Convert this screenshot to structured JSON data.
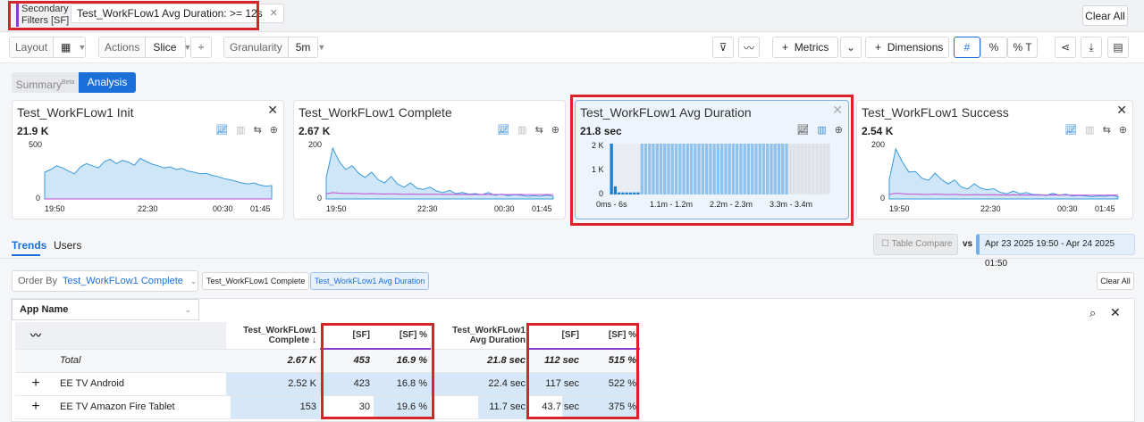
{
  "filters": {
    "label": "Secondary Filters [SF]",
    "chip": "Test_WorkFLow1 Avg Duration: >= 12s",
    "clear_all": "Clear All"
  },
  "toolbar": {
    "layout_label": "Layout",
    "actions_label": "Actions",
    "actions_value": "Slice",
    "granularity_label": "Granularity",
    "granularity_value": "5m",
    "metrics": "Metrics",
    "dimensions": "Dimensions",
    "hash": "#",
    "pct": "%",
    "pct_t": "% T"
  },
  "view_tabs": {
    "summary": "Summary",
    "beta": "Beta",
    "analysis": "Analysis"
  },
  "cards": [
    {
      "title": "Test_WorkFLow1 Init",
      "value": "21.9 K",
      "ymax": "500",
      "ymin": "0",
      "x": [
        "19:50",
        "22:30",
        "00:30",
        "01:45"
      ]
    },
    {
      "title": "Test_WorkFLow1 Complete",
      "value": "2.67 K",
      "ymax": "200",
      "ymin": "0",
      "x": [
        "19:50",
        "22:30",
        "00:30",
        "01:45"
      ]
    },
    {
      "title": "Test_WorkFLow1 Avg Duration",
      "value": "21.8 sec",
      "ymax": "2 K",
      "ymid": "1 K",
      "ymin": "0",
      "x": [
        "0ms - 6s",
        "1.1m - 1.2m",
        "2.2m - 2.3m",
        "3.3m - 3.4m"
      ]
    },
    {
      "title": "Test_WorkFLow1 Success",
      "value": "2.54 K",
      "ymax": "200",
      "ymin": "0",
      "x": [
        "19:50",
        "22:30",
        "00:30",
        "01:45"
      ]
    }
  ],
  "trends": {
    "tab_trends": "Trends",
    "tab_users": "Users",
    "table_compare": "Table Compare",
    "vs": "vs",
    "date_range": "Apr 23 2025 19:50 - Apr 24 2025 01:50"
  },
  "orderby": {
    "label": "Order By",
    "value": "Test_WorkFLow1 Complete",
    "chip1": "Test_WorkFLow1 Complete",
    "chip2": "Test_WorkFLow1 Avg Duration",
    "clear_all": "Clear All"
  },
  "table": {
    "dim_header": "App Name",
    "col1": "Test_WorkFLow1 Complete",
    "sort_arrow": "↓",
    "sf": "[SF]",
    "sf_pct": "[SF] %",
    "col2": "Test_WorkFLow1 Avg Duration",
    "rows": [
      {
        "name": "Total",
        "c": "2.67 K",
        "csf": "453",
        "cpct": "16.9 %",
        "d": "21.8 sec",
        "dsf": "112 sec",
        "dpct": "515 %"
      },
      {
        "name": "EE TV Android",
        "c": "2.52 K",
        "csf": "423",
        "cpct": "16.8 %",
        "d": "22.4 sec",
        "dsf": "117 sec",
        "dpct": "522 %"
      },
      {
        "name": "EE TV Amazon Fire Tablet",
        "c": "153",
        "csf": "30",
        "cpct": "19.6 %",
        "d": "11.7 sec",
        "dsf": "43.7 sec",
        "dpct": "375 %"
      }
    ]
  },
  "colors": {
    "accent": "#1a6fd8",
    "sf_purple": "#8a3cc8",
    "highlight": "#d8232a",
    "area": "#cfe6f8"
  }
}
